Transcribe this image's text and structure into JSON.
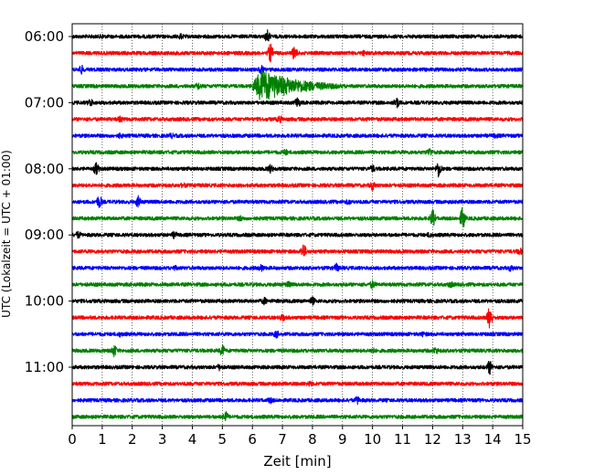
{
  "chart_data": {
    "type": "line",
    "title": "",
    "xlabel": "Zeit  [min]",
    "ylabel": "UTC (Lokalzeit = UTC + 01:00)",
    "xlim": [
      0,
      15
    ],
    "x_ticks": [
      0,
      1,
      2,
      3,
      4,
      5,
      6,
      7,
      8,
      9,
      10,
      11,
      12,
      13,
      14,
      15
    ],
    "x_tick_labels": [
      "0",
      "1",
      "2",
      "3",
      "4",
      "5",
      "6",
      "7",
      "8",
      "9",
      "10",
      "11",
      "12",
      "13",
      "14",
      "15"
    ],
    "y_ticks": [
      "06:00",
      "07:00",
      "08:00",
      "09:00",
      "10:00",
      "11:00"
    ],
    "grid": "vertical-dotted",
    "trace_interval_minutes": 15,
    "first_trace_utc": "06:00",
    "last_trace_utc": "11:45",
    "color_cycle": [
      "#000000",
      "#ff0000",
      "#0000ff",
      "#008000"
    ],
    "series": [
      {
        "start": "06:00",
        "color": "#000000",
        "events": [
          {
            "x": 1.0,
            "amp": 0.25
          },
          {
            "x": 3.6,
            "amp": 0.35
          },
          {
            "x": 6.5,
            "amp": 1.0
          }
        ]
      },
      {
        "start": "06:15",
        "color": "#ff0000",
        "events": [
          {
            "x": 6.6,
            "amp": 1.6
          },
          {
            "x": 7.4,
            "amp": 1.2
          },
          {
            "x": 9.7,
            "amp": 0.3
          }
        ]
      },
      {
        "start": "06:30",
        "color": "#0000ff",
        "events": [
          {
            "x": 0.3,
            "amp": 0.7
          },
          {
            "x": 6.3,
            "amp": 0.6
          }
        ]
      },
      {
        "start": "06:45",
        "color": "#008000",
        "events": [
          {
            "x": 4.2,
            "amp": 0.5
          }
        ],
        "quake": {
          "start": 6.0,
          "end": 10.0,
          "amp": 3.0
        }
      },
      {
        "start": "07:00",
        "color": "#000000",
        "events": [
          {
            "x": 0.6,
            "amp": 0.6
          },
          {
            "x": 7.5,
            "amp": 0.9
          },
          {
            "x": 10.8,
            "amp": 0.9
          }
        ]
      },
      {
        "start": "07:15",
        "color": "#ff0000",
        "events": [
          {
            "x": 1.6,
            "amp": 0.4
          },
          {
            "x": 6.9,
            "amp": 0.5
          }
        ]
      },
      {
        "start": "07:30",
        "color": "#0000ff",
        "events": [
          {
            "x": 1.6,
            "amp": 0.3
          },
          {
            "x": 3.3,
            "amp": 0.3
          },
          {
            "x": 14.1,
            "amp": 0.3
          }
        ]
      },
      {
        "start": "07:45",
        "color": "#008000",
        "events": [
          {
            "x": 7.1,
            "amp": 0.4
          },
          {
            "x": 11.9,
            "amp": 0.6
          }
        ]
      },
      {
        "start": "08:00",
        "color": "#000000",
        "events": [
          {
            "x": 0.8,
            "amp": 1.0
          },
          {
            "x": 6.6,
            "amp": 0.6
          },
          {
            "x": 10.0,
            "amp": 0.5
          },
          {
            "x": 12.2,
            "amp": 1.4
          }
        ]
      },
      {
        "start": "08:15",
        "color": "#ff0000",
        "events": [
          {
            "x": 3.7,
            "amp": 0.3
          },
          {
            "x": 10.0,
            "amp": 0.7
          }
        ]
      },
      {
        "start": "08:30",
        "color": "#0000ff",
        "events": [
          {
            "x": 0.9,
            "amp": 1.1
          },
          {
            "x": 2.2,
            "amp": 0.9
          },
          {
            "x": 9.2,
            "amp": 0.3
          }
        ]
      },
      {
        "start": "08:45",
        "color": "#008000",
        "events": [
          {
            "x": 5.6,
            "amp": 0.3
          },
          {
            "x": 12.0,
            "amp": 1.5
          },
          {
            "x": 13.0,
            "amp": 2.0
          }
        ]
      },
      {
        "start": "09:00",
        "color": "#000000",
        "events": [
          {
            "x": 0.2,
            "amp": 0.5
          },
          {
            "x": 3.4,
            "amp": 0.5
          },
          {
            "x": 11.9,
            "amp": 0.3
          }
        ]
      },
      {
        "start": "09:15",
        "color": "#ff0000",
        "events": [
          {
            "x": 7.7,
            "amp": 1.3
          },
          {
            "x": 14.9,
            "amp": 0.5
          }
        ]
      },
      {
        "start": "09:30",
        "color": "#0000ff",
        "events": [
          {
            "x": 3.4,
            "amp": 0.3
          },
          {
            "x": 6.3,
            "amp": 0.5
          },
          {
            "x": 8.8,
            "amp": 0.6
          },
          {
            "x": 14.6,
            "amp": 0.4
          }
        ]
      },
      {
        "start": "09:45",
        "color": "#008000",
        "events": [
          {
            "x": 7.2,
            "amp": 0.4
          },
          {
            "x": 10.0,
            "amp": 0.6
          },
          {
            "x": 12.6,
            "amp": 0.4
          }
        ]
      },
      {
        "start": "10:00",
        "color": "#000000",
        "events": [
          {
            "x": 6.4,
            "amp": 0.5
          },
          {
            "x": 8.0,
            "amp": 0.6
          }
        ]
      },
      {
        "start": "10:15",
        "color": "#ff0000",
        "events": [
          {
            "x": 7.0,
            "amp": 0.5
          },
          {
            "x": 13.9,
            "amp": 2.2
          }
        ]
      },
      {
        "start": "10:30",
        "color": "#0000ff",
        "events": [
          {
            "x": 1.6,
            "amp": 0.3
          },
          {
            "x": 6.8,
            "amp": 0.5
          },
          {
            "x": 11.7,
            "amp": 0.3
          }
        ]
      },
      {
        "start": "10:45",
        "color": "#008000",
        "events": [
          {
            "x": 1.4,
            "amp": 1.0
          },
          {
            "x": 5.0,
            "amp": 0.9
          },
          {
            "x": 10.0,
            "amp": 0.4
          },
          {
            "x": 12.1,
            "amp": 0.5
          }
        ]
      },
      {
        "start": "11:00",
        "color": "#000000",
        "events": [
          {
            "x": 4.9,
            "amp": 0.4
          },
          {
            "x": 13.9,
            "amp": 1.2
          }
        ]
      },
      {
        "start": "11:15",
        "color": "#ff0000",
        "events": [
          {
            "x": 7.9,
            "amp": 0.3
          }
        ]
      },
      {
        "start": "11:30",
        "color": "#0000ff",
        "events": [
          {
            "x": 6.6,
            "amp": 0.4
          },
          {
            "x": 9.5,
            "amp": 0.6
          }
        ]
      },
      {
        "start": "11:45",
        "color": "#008000",
        "events": [
          {
            "x": 5.1,
            "amp": 1.0
          }
        ]
      }
    ]
  }
}
